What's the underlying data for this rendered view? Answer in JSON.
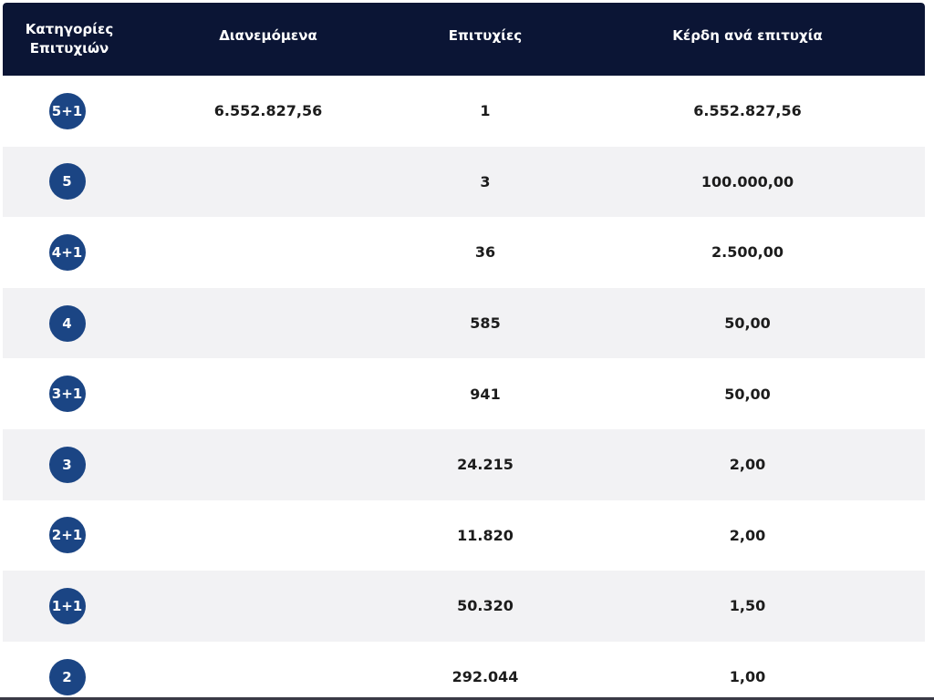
{
  "header": {
    "category_label_line1": "Κατηγορίες",
    "category_label_line2": "Επιτυχιών",
    "distributed_label": "Διανεμόμενα",
    "winners_label": "Επιτυχίες",
    "prize_label": "Κέρδη ανά επιτυχία"
  },
  "rows": [
    {
      "category": "5+1",
      "distributed": "6.552.827,56",
      "winners": "1",
      "prize": "6.552.827,56"
    },
    {
      "category": "5",
      "distributed": "",
      "winners": "3",
      "prize": "100.000,00"
    },
    {
      "category": "4+1",
      "distributed": "",
      "winners": "36",
      "prize": "2.500,00"
    },
    {
      "category": "4",
      "distributed": "",
      "winners": "585",
      "prize": "50,00"
    },
    {
      "category": "3+1",
      "distributed": "",
      "winners": "941",
      "prize": "50,00"
    },
    {
      "category": "3",
      "distributed": "",
      "winners": "24.215",
      "prize": "2,00"
    },
    {
      "category": "2+1",
      "distributed": "",
      "winners": "11.820",
      "prize": "2,00"
    },
    {
      "category": "1+1",
      "distributed": "",
      "winners": "50.320",
      "prize": "1,50"
    },
    {
      "category": "2",
      "distributed": "",
      "winners": "292.044",
      "prize": "1,00"
    }
  ]
}
